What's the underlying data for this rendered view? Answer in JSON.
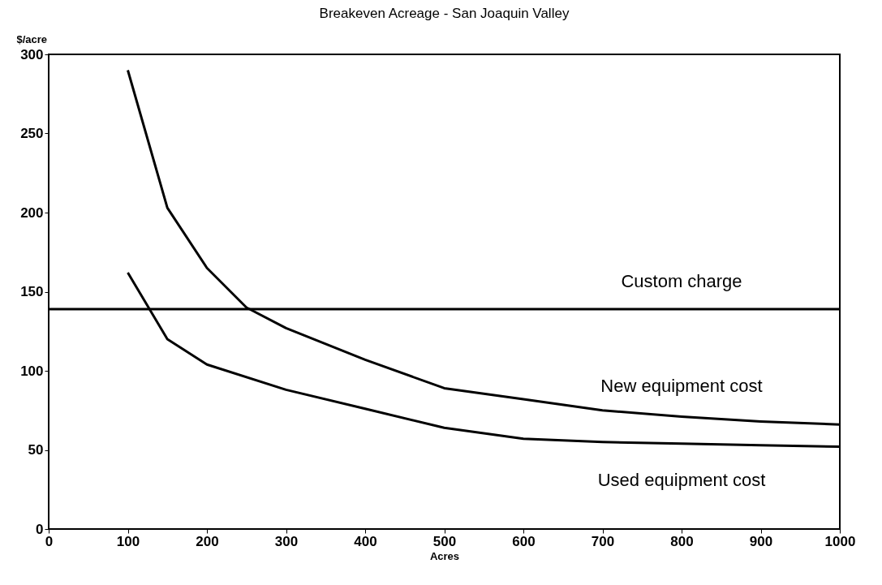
{
  "chart_data": {
    "type": "line",
    "title": "Breakeven Acreage - San Joaquin Valley",
    "xlabel": "Acres",
    "ylabel": "$/acre",
    "xlim": [
      0,
      1000
    ],
    "xticks": [
      0,
      100,
      200,
      300,
      400,
      500,
      600,
      700,
      800,
      900,
      1000
    ],
    "ylim": [
      0,
      300
    ],
    "yticks": [
      0,
      50,
      100,
      150,
      200,
      250,
      300
    ],
    "grid": false,
    "marker": "none",
    "line_style": "solid",
    "series": [
      {
        "name": "New equipment cost",
        "color": "#000000",
        "x": [
          100,
          150,
          200,
          250,
          300,
          400,
          500,
          600,
          700,
          800,
          900,
          1000
        ],
        "values": [
          290,
          203,
          165,
          140,
          127,
          107,
          89,
          82,
          75,
          71,
          68,
          66
        ]
      },
      {
        "name": "Used equipment cost",
        "color": "#000000",
        "x": [
          100,
          150,
          200,
          300,
          400,
          500,
          600,
          700,
          800,
          900,
          1000
        ],
        "values": [
          162,
          120,
          104,
          88,
          76,
          64,
          57,
          55,
          54,
          53,
          52
        ]
      }
    ],
    "ref_lines": [
      {
        "axis": "y",
        "value": 139,
        "label": "Custom charge",
        "color": "#000000",
        "line_style": "solid"
      }
    ]
  }
}
